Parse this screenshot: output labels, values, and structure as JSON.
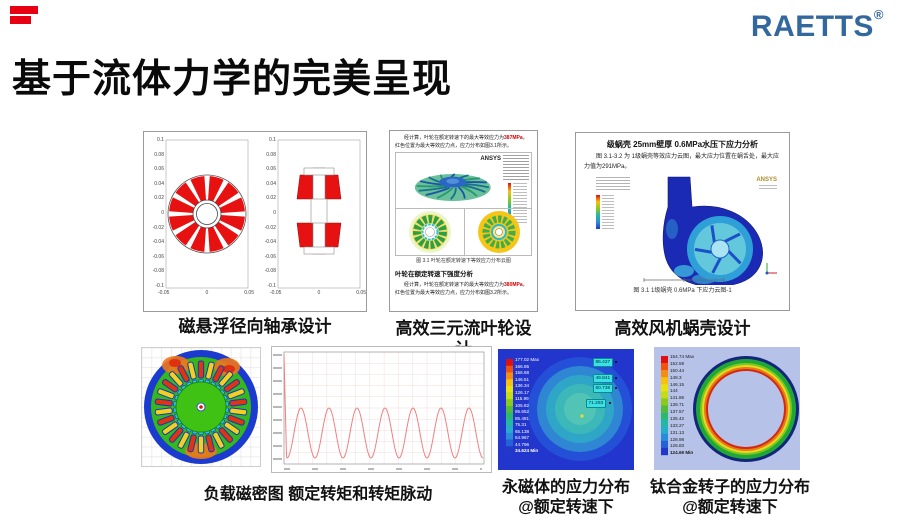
{
  "brand": {
    "logo_text": "RAETTS",
    "registered_mark": "®",
    "logo_color": "#33689e",
    "accent_red": "#e60012"
  },
  "page": {
    "title": "基于流体力学的完美呈现"
  },
  "bearing": {
    "caption": "磁悬浮径向轴承设计",
    "y_ticks": [
      "0.1",
      "0.08",
      "0.06",
      "0.04",
      "0.02",
      "0",
      "-0.02",
      "-0.04",
      "-0.06",
      "-0.08",
      "-0.1"
    ],
    "x_ticks": [
      "-0.05",
      "0",
      "0.05"
    ]
  },
  "impeller": {
    "caption": "高效三元流叶轮设计",
    "ansys_label": "ANSYS",
    "para1": {
      "prefix": "经计算，叶轮在额定转速下的最大等效应力为",
      "value": "387MPa",
      "suffix": "，红色位置为最大等效应力点，应力分布如图3.1所示。"
    },
    "fig_caption": "图 3.1  叶轮在额定转速下等效应力分布云图",
    "heading": "叶轮在额定转速下强度分析",
    "para2": {
      "prefix": "经计算，叶轮在额定转速下的最大等效应力为",
      "value": "380MPa",
      "suffix": "，红色位置为最大等效应力点，应力分布如图3.2所示。"
    }
  },
  "volute": {
    "caption": "高效风机蜗壳设计",
    "doc_title": "级蜗壳 25mm壁厚 0.6MPa水压下应力分析",
    "doc_body": "图 3.1-3.2 为 1级蜗壳等效应力云图，最大应力位置在蜗舌处，最大应力值为291MPa。",
    "ansys_label": "ANSYS",
    "fig_caption": "图 3.1   1级蜗壳 0.6MPa 下应力云图-1"
  },
  "magnetic": {
    "caption": "负载磁密图  额定转矩和转矩脉动"
  },
  "magnet_stress": {
    "caption_line1": "永磁体的应力分布",
    "caption_line2": "@额定转速下",
    "legend": [
      "177.02 Max",
      "166.85",
      "156.68",
      "146.51",
      "136.34",
      "126.17",
      "115.99",
      "105.82",
      "95.652",
      "85.481",
      "75.31",
      "65.138",
      "54.967",
      "44.796",
      "34.624 Min"
    ],
    "probes": [
      "85.427",
      "49.841",
      "60.738",
      "71.293"
    ]
  },
  "rotor_stress": {
    "caption_line1": "钛合金转子的应力分布",
    "caption_line2": "@额定转速下",
    "legend": [
      "154.74 Max",
      "152.59",
      "150.44",
      "148.3",
      "146.15",
      "144",
      "141.86",
      "139.71",
      "137.57",
      "135.42",
      "133.27",
      "131.13",
      "128.98",
      "126.83",
      "124.69 Min"
    ]
  }
}
